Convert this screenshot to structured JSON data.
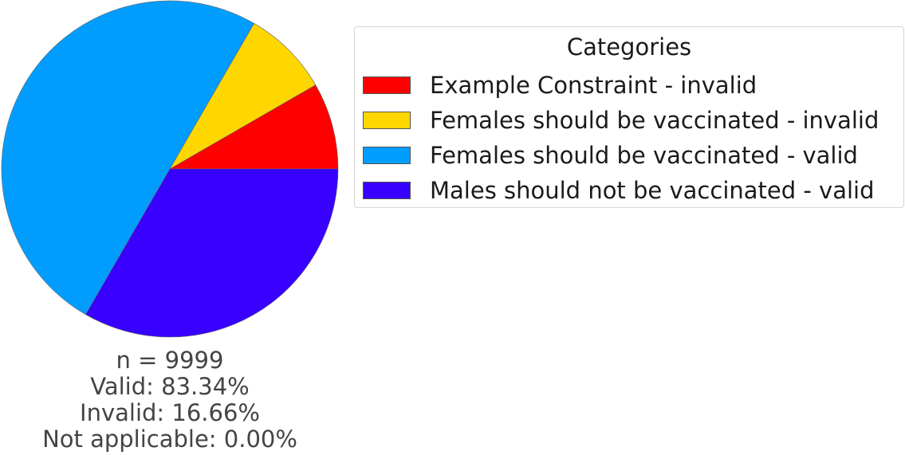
{
  "chart_data": {
    "type": "pie",
    "start_angle_deg": 0,
    "direction": "counterclockwise",
    "slices": [
      {
        "label": "Example Constraint - invalid",
        "value": 8.33,
        "color": "#ff0000"
      },
      {
        "label": "Females should be vaccinated - invalid",
        "value": 8.33,
        "color": "#ffd700"
      },
      {
        "label": "Females should be vaccinated - valid",
        "value": 50.0,
        "color": "#009dff"
      },
      {
        "label": "Males should not be vaccinated - valid",
        "value": 33.34,
        "color": "#3700ff"
      }
    ],
    "legend": {
      "title": "Categories",
      "placement": "right"
    },
    "stats": {
      "n": "n = 9999",
      "valid": "Valid: 83.34%",
      "invalid": "Invalid: 16.66%",
      "not_applicable": "Not applicable: 0.00%"
    }
  }
}
